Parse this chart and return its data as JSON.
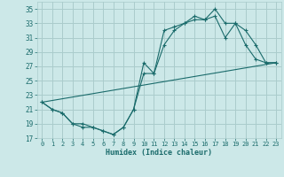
{
  "xlabel": "Humidex (Indice chaleur)",
  "background_color": "#cce8e8",
  "grid_color": "#aacccc",
  "line_color": "#1a6b6b",
  "xlim": [
    -0.5,
    23.5
  ],
  "ylim": [
    17,
    36
  ],
  "yticks": [
    17,
    19,
    21,
    23,
    25,
    27,
    29,
    31,
    33,
    35
  ],
  "xticks": [
    0,
    1,
    2,
    3,
    4,
    5,
    6,
    7,
    8,
    9,
    10,
    11,
    12,
    13,
    14,
    15,
    16,
    17,
    18,
    19,
    20,
    21,
    22,
    23
  ],
  "line1_x": [
    0,
    1,
    2,
    3,
    4,
    5,
    6,
    7,
    8,
    9,
    10,
    11,
    12,
    13,
    14,
    15,
    16,
    17,
    18,
    19,
    20,
    21,
    22,
    23
  ],
  "line1_y": [
    22,
    21,
    20.5,
    19,
    19,
    18.5,
    18,
    17.5,
    18.5,
    21,
    27.5,
    26,
    32,
    32.5,
    33,
    34,
    33.5,
    35,
    33,
    33,
    30,
    28,
    27.5,
    27.5
  ],
  "line2_x": [
    0,
    1,
    2,
    3,
    4,
    5,
    6,
    7,
    8,
    9,
    10,
    11,
    12,
    13,
    14,
    15,
    16,
    17,
    18,
    19,
    20,
    21,
    22,
    23
  ],
  "line2_y": [
    22,
    21,
    20.5,
    19,
    18.5,
    18.5,
    18,
    17.5,
    18.5,
    21,
    26,
    26,
    30,
    32,
    33,
    33.5,
    33.5,
    34,
    31,
    33,
    32,
    30,
    27.5,
    27.5
  ],
  "line3_x": [
    0,
    23
  ],
  "line3_y": [
    22,
    27.5
  ]
}
